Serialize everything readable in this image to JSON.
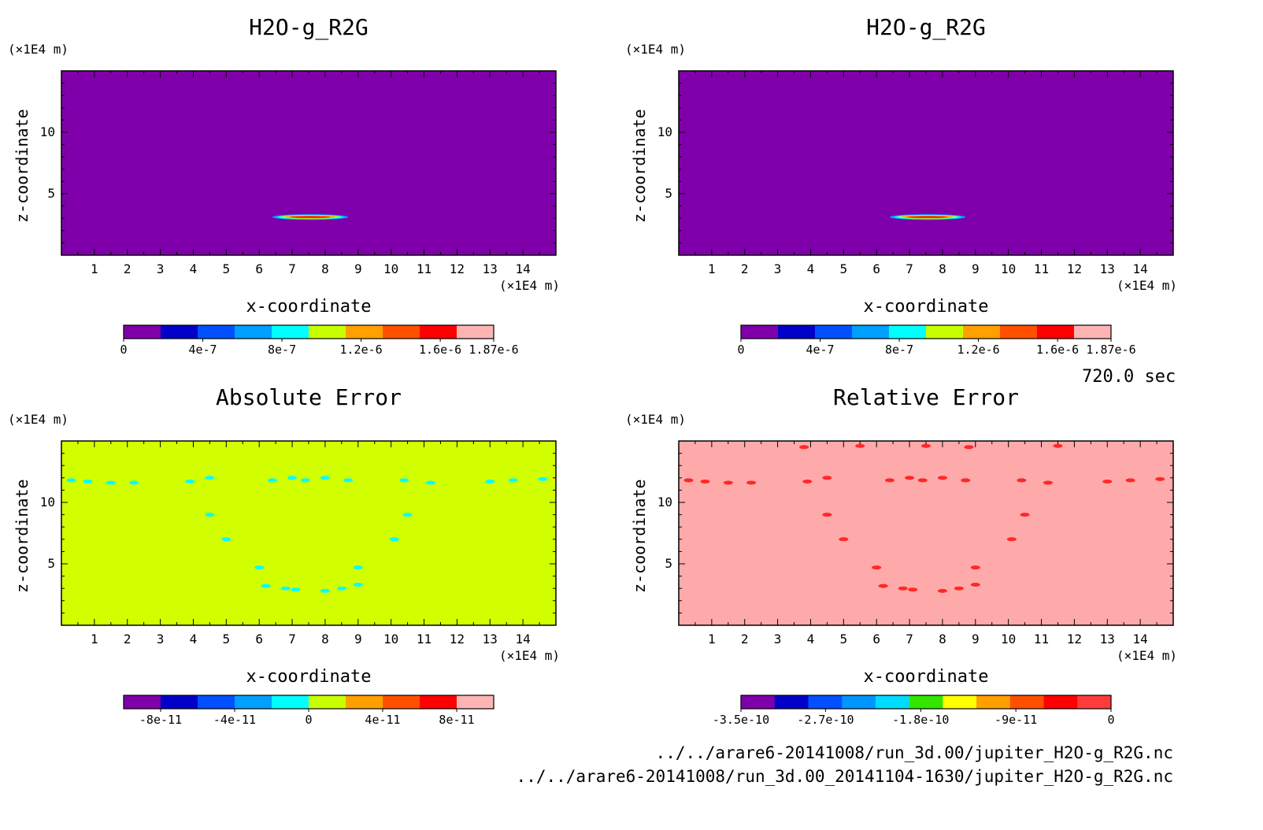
{
  "chart_data": [
    {
      "type": "heatmap",
      "title": "H2O-g_R2G",
      "xlabel": "x-coordinate",
      "ylabel": "z-coordinate",
      "x_unit": "(×1E4 m)",
      "y_unit": "(×1E4 m)",
      "xlim": [
        0,
        15
      ],
      "ylim": [
        0,
        15
      ],
      "xticks": [
        "1",
        "2",
        "3",
        "4",
        "5",
        "6",
        "7",
        "8",
        "9",
        "10",
        "11",
        "12",
        "13",
        "14"
      ],
      "yticks": [
        "5",
        "10"
      ],
      "background_level": 0,
      "colorbar": {
        "colors": [
          "#7f00aa",
          "#0000c8",
          "#0050ff",
          "#00a0ff",
          "#00ffff",
          "#c8ff00",
          "#ffa000",
          "#ff5000",
          "#ff0000",
          "#ffb4b4"
        ],
        "tick_labels": [
          "0",
          "4e-7",
          "8e-7",
          "1.2e-6",
          "1.6e-6",
          "1.87e-6"
        ],
        "tick_values": [
          0,
          4e-07,
          8e-07,
          1.2e-06,
          1.6e-06,
          1.87e-06
        ],
        "range": [
          0,
          1.87e-06
        ]
      },
      "features": [
        {
          "kind": "plume",
          "x_range": [
            6.4,
            8.7
          ],
          "z": 3.1,
          "max": 1.87e-06
        }
      ]
    },
    {
      "type": "heatmap",
      "title": "H2O-g_R2G",
      "xlabel": "x-coordinate",
      "ylabel": "z-coordinate",
      "x_unit": "(×1E4 m)",
      "y_unit": "(×1E4 m)",
      "xlim": [
        0,
        15
      ],
      "ylim": [
        0,
        15
      ],
      "xticks": [
        "1",
        "2",
        "3",
        "4",
        "5",
        "6",
        "7",
        "8",
        "9",
        "10",
        "11",
        "12",
        "13",
        "14"
      ],
      "yticks": [
        "5",
        "10"
      ],
      "background_level": 0,
      "colorbar": {
        "colors": [
          "#7f00aa",
          "#0000c8",
          "#0050ff",
          "#00a0ff",
          "#00ffff",
          "#c8ff00",
          "#ffa000",
          "#ff5000",
          "#ff0000",
          "#ffb4b4"
        ],
        "tick_labels": [
          "0",
          "4e-7",
          "8e-7",
          "1.2e-6",
          "1.6e-6",
          "1.87e-6"
        ],
        "tick_values": [
          0,
          4e-07,
          8e-07,
          1.2e-06,
          1.6e-06,
          1.87e-06
        ],
        "range": [
          0,
          1.87e-06
        ]
      },
      "features": [
        {
          "kind": "plume",
          "x_range": [
            6.4,
            8.7
          ],
          "z": 3.1,
          "max": 1.87e-06
        }
      ]
    },
    {
      "type": "heatmap",
      "title": "Absolute Error",
      "xlabel": "x-coordinate",
      "ylabel": "z-coordinate",
      "x_unit": "(×1E4 m)",
      "y_unit": "(×1E4 m)",
      "xlim": [
        0,
        15
      ],
      "ylim": [
        0,
        15
      ],
      "xticks": [
        "1",
        "2",
        "3",
        "4",
        "5",
        "6",
        "7",
        "8",
        "9",
        "10",
        "11",
        "12",
        "13",
        "14"
      ],
      "yticks": [
        "5",
        "10"
      ],
      "background_level": 0,
      "background_color": "#d2ff00",
      "speck_color": "#00ffff",
      "colorbar": {
        "colors": [
          "#7f00aa",
          "#0000c8",
          "#0050ff",
          "#00a0ff",
          "#00ffff",
          "#c8ff00",
          "#ffa000",
          "#ff5000",
          "#ff0000",
          "#ffb4b4"
        ],
        "tick_labels": [
          "-8e-11",
          "-4e-11",
          "0",
          "4e-11",
          "8e-11"
        ],
        "tick_values": [
          -8e-11,
          -4e-11,
          0,
          4e-11,
          8e-11
        ],
        "range": [
          -1e-10,
          1e-10
        ]
      },
      "specks": [
        [
          0.3,
          11.8
        ],
        [
          0.8,
          11.7
        ],
        [
          1.5,
          11.6
        ],
        [
          2.2,
          11.6
        ],
        [
          3.9,
          11.7
        ],
        [
          4.5,
          12.0
        ],
        [
          6.4,
          11.8
        ],
        [
          7.0,
          12.0
        ],
        [
          7.4,
          11.8
        ],
        [
          8.0,
          12.0
        ],
        [
          8.7,
          11.8
        ],
        [
          10.4,
          11.8
        ],
        [
          11.2,
          11.6
        ],
        [
          13.0,
          11.7
        ],
        [
          13.7,
          11.8
        ],
        [
          14.6,
          11.9
        ],
        [
          4.5,
          9.0
        ],
        [
          5.0,
          7.0
        ],
        [
          10.5,
          9.0
        ],
        [
          10.1,
          7.0
        ],
        [
          6.0,
          4.7
        ],
        [
          9.0,
          4.7
        ],
        [
          6.2,
          3.2
        ],
        [
          6.8,
          3.0
        ],
        [
          7.1,
          2.9
        ],
        [
          8.0,
          2.8
        ],
        [
          8.5,
          3.0
        ],
        [
          9.0,
          3.3
        ]
      ]
    },
    {
      "type": "heatmap",
      "title": "Relative Error",
      "xlabel": "x-coordinate",
      "ylabel": "z-coordinate",
      "x_unit": "(×1E4 m)",
      "y_unit": "(×1E4 m)",
      "xlim": [
        0,
        15
      ],
      "ylim": [
        0,
        15
      ],
      "xticks": [
        "1",
        "2",
        "3",
        "4",
        "5",
        "6",
        "7",
        "8",
        "9",
        "10",
        "11",
        "12",
        "13",
        "14"
      ],
      "yticks": [
        "5",
        "10"
      ],
      "background_level": 0,
      "background_color": "#ffaaaa",
      "speck_color": "#ff2828",
      "colorbar": {
        "colors": [
          "#7f00aa",
          "#0000c8",
          "#0050ff",
          "#0096ff",
          "#00dcff",
          "#32e600",
          "#ffff00",
          "#ffa000",
          "#ff5000",
          "#ff0000",
          "#ff3c3c"
        ],
        "tick_labels": [
          "-3.5e-10",
          "-2.7e-10",
          "-1.8e-10",
          "-9e-11",
          "0"
        ],
        "tick_values": [
          -3.5e-10,
          -2.7e-10,
          -1.8e-10,
          -9e-11,
          0
        ],
        "range": [
          -3.5e-10,
          0
        ]
      },
      "specks": [
        [
          0.3,
          11.8
        ],
        [
          0.8,
          11.7
        ],
        [
          1.5,
          11.6
        ],
        [
          2.2,
          11.6
        ],
        [
          3.9,
          11.7
        ],
        [
          4.5,
          12.0
        ],
        [
          6.4,
          11.8
        ],
        [
          7.0,
          12.0
        ],
        [
          7.4,
          11.8
        ],
        [
          8.0,
          12.0
        ],
        [
          8.7,
          11.8
        ],
        [
          10.4,
          11.8
        ],
        [
          11.2,
          11.6
        ],
        [
          13.0,
          11.7
        ],
        [
          13.7,
          11.8
        ],
        [
          14.6,
          11.9
        ],
        [
          3.8,
          14.5
        ],
        [
          5.5,
          14.6
        ],
        [
          7.5,
          14.6
        ],
        [
          8.8,
          14.5
        ],
        [
          11.5,
          14.6
        ],
        [
          4.5,
          9.0
        ],
        [
          5.0,
          7.0
        ],
        [
          10.5,
          9.0
        ],
        [
          10.1,
          7.0
        ],
        [
          6.0,
          4.7
        ],
        [
          9.0,
          4.7
        ],
        [
          6.2,
          3.2
        ],
        [
          6.8,
          3.0
        ],
        [
          7.1,
          2.9
        ],
        [
          8.0,
          2.8
        ],
        [
          8.5,
          3.0
        ],
        [
          9.0,
          3.3
        ]
      ]
    }
  ],
  "time_label": "720.0 sec",
  "files": [
    "../../arare6-20141008/run_3d.00/jupiter_H2O-g_R2G.nc",
    "../../arare6-20141008/run_3d.00_20141104-1630/jupiter_H2O-g_R2G.nc"
  ]
}
